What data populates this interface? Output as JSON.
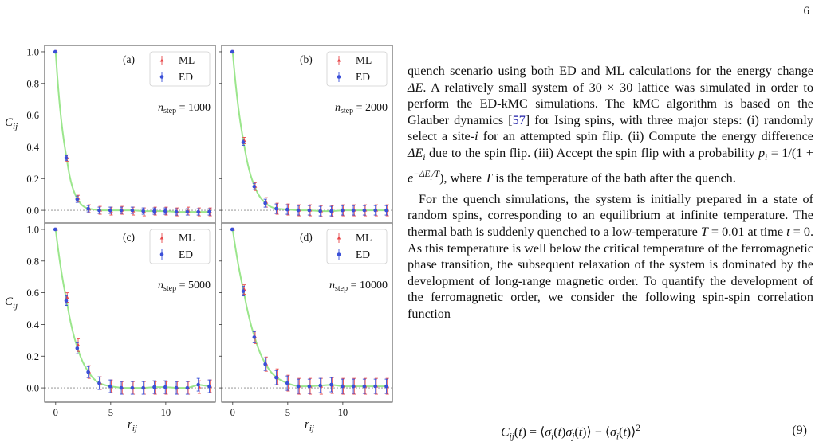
{
  "page_number": "6",
  "figure": {
    "panels": [
      {
        "label": "(a)",
        "annotation": "n",
        "annotation_sub": "step",
        "annotation_value": "= 1000"
      },
      {
        "label": "(b)",
        "annotation": "n",
        "annotation_sub": "step",
        "annotation_value": "= 2000"
      },
      {
        "label": "(c)",
        "annotation": "n",
        "annotation_sub": "step",
        "annotation_value": "= 5000"
      },
      {
        "label": "(d)",
        "annotation": "n",
        "annotation_sub": "step",
        "annotation_value": "= 10000"
      }
    ],
    "ylabel": "C",
    "ylabel_sub": "ij",
    "xlabel": "r",
    "xlabel_sub": "ij",
    "legend": [
      "ML",
      "ED"
    ],
    "colors": {
      "ml": "#e8494b",
      "ed": "#3a4fd8",
      "curve": "#9be68c",
      "zero_line": "#888888"
    }
  },
  "chart_data": [
    {
      "type": "scatter",
      "panel": "(a)",
      "xlim": [
        -1,
        14.5
      ],
      "ylim": [
        -0.09,
        1.04
      ],
      "xticks": [
        "0",
        "5",
        "10"
      ],
      "yticks": [
        "0.0",
        "0.2",
        "0.4",
        "0.6",
        "0.8",
        "1.0"
      ],
      "x": [
        0,
        1,
        2,
        3,
        4,
        5,
        6,
        7,
        8,
        9,
        10,
        11,
        12,
        13,
        14
      ],
      "series": [
        {
          "name": "ML",
          "values": [
            1.0,
            0.33,
            0.075,
            0.01,
            0.0,
            -0.005,
            0.0,
            -0.005,
            -0.01,
            -0.005,
            -0.005,
            -0.01,
            -0.005,
            -0.01,
            -0.01
          ],
          "errors": [
            0.0,
            0.02,
            0.02,
            0.025,
            0.025,
            0.025,
            0.025,
            0.025,
            0.025,
            0.025,
            0.025,
            0.025,
            0.025,
            0.025,
            0.025
          ]
        },
        {
          "name": "ED",
          "values": [
            1.0,
            0.33,
            0.07,
            0.01,
            0.0,
            0.0,
            0.0,
            0.0,
            -0.005,
            -0.005,
            -0.005,
            -0.01,
            -0.01,
            -0.01,
            -0.01
          ],
          "errors": [
            0.0,
            0.015,
            0.02,
            0.02,
            0.02,
            0.02,
            0.02,
            0.02,
            0.02,
            0.02,
            0.02,
            0.02,
            0.02,
            0.02,
            0.02
          ]
        }
      ]
    },
    {
      "type": "scatter",
      "panel": "(b)",
      "xlim": [
        -1,
        14.5
      ],
      "ylim": [
        -0.09,
        1.04
      ],
      "xticks": [
        "0",
        "5",
        "10"
      ],
      "yticks": [],
      "x": [
        0,
        1,
        2,
        3,
        4,
        5,
        6,
        7,
        8,
        9,
        10,
        11,
        12,
        13,
        14
      ],
      "series": [
        {
          "name": "ML",
          "values": [
            1.0,
            0.44,
            0.15,
            0.05,
            0.01,
            0.005,
            0.0,
            0.0,
            -0.005,
            -0.005,
            0.0,
            0.0,
            0.0,
            0.0,
            0.0
          ],
          "errors": [
            0.0,
            0.02,
            0.025,
            0.03,
            0.035,
            0.035,
            0.035,
            0.035,
            0.035,
            0.035,
            0.035,
            0.035,
            0.035,
            0.035,
            0.035
          ]
        },
        {
          "name": "ED",
          "values": [
            1.0,
            0.43,
            0.15,
            0.045,
            0.01,
            0.005,
            0.0,
            0.0,
            -0.005,
            -0.005,
            0.0,
            0.0,
            0.0,
            0.0,
            0.0
          ],
          "errors": [
            0.0,
            0.02,
            0.02,
            0.025,
            0.03,
            0.03,
            0.03,
            0.03,
            0.03,
            0.03,
            0.03,
            0.03,
            0.03,
            0.03,
            0.03
          ]
        }
      ]
    },
    {
      "type": "scatter",
      "panel": "(c)",
      "xlim": [
        -1,
        14.5
      ],
      "ylim": [
        -0.09,
        1.04
      ],
      "xticks": [
        "0",
        "5",
        "10"
      ],
      "yticks": [
        "0.0",
        "0.2",
        "0.4",
        "0.6",
        "0.8",
        "1.0"
      ],
      "x": [
        0,
        1,
        2,
        3,
        4,
        5,
        6,
        7,
        8,
        9,
        10,
        11,
        12,
        13,
        14
      ],
      "series": [
        {
          "name": "ML",
          "values": [
            1.0,
            0.57,
            0.27,
            0.1,
            0.03,
            0.01,
            0.0,
            0.0,
            0.0,
            0.0,
            0.0,
            0.0,
            0.0,
            0.005,
            0.01
          ],
          "errors": [
            0.0,
            0.03,
            0.04,
            0.04,
            0.04,
            0.04,
            0.04,
            0.04,
            0.04,
            0.04,
            0.04,
            0.04,
            0.04,
            0.04,
            0.04
          ]
        },
        {
          "name": "ED",
          "values": [
            1.0,
            0.55,
            0.25,
            0.1,
            0.03,
            0.01,
            0.0,
            0.0,
            0.0,
            0.005,
            0.005,
            0.0,
            0.0,
            0.02,
            0.01
          ],
          "errors": [
            0.0,
            0.03,
            0.035,
            0.035,
            0.04,
            0.04,
            0.04,
            0.04,
            0.04,
            0.04,
            0.04,
            0.04,
            0.04,
            0.04,
            0.04
          ]
        }
      ]
    },
    {
      "type": "scatter",
      "panel": "(d)",
      "xlim": [
        -1,
        14.5
      ],
      "ylim": [
        -0.09,
        1.04
      ],
      "xticks": [
        "0",
        "5",
        "10"
      ],
      "yticks": [],
      "x": [
        0,
        1,
        2,
        3,
        4,
        5,
        6,
        7,
        8,
        9,
        10,
        11,
        12,
        13,
        14
      ],
      "series": [
        {
          "name": "ML",
          "values": [
            1.0,
            0.62,
            0.32,
            0.15,
            0.07,
            0.03,
            0.01,
            0.01,
            0.01,
            0.015,
            0.01,
            0.01,
            0.01,
            0.01,
            0.01
          ],
          "errors": [
            0.0,
            0.03,
            0.04,
            0.045,
            0.05,
            0.05,
            0.05,
            0.05,
            0.05,
            0.05,
            0.05,
            0.05,
            0.05,
            0.05,
            0.05
          ]
        },
        {
          "name": "ED",
          "values": [
            1.0,
            0.61,
            0.32,
            0.15,
            0.065,
            0.03,
            0.01,
            0.01,
            0.015,
            0.02,
            0.01,
            0.01,
            0.01,
            0.01,
            0.01
          ],
          "errors": [
            0.0,
            0.03,
            0.035,
            0.04,
            0.045,
            0.045,
            0.045,
            0.045,
            0.045,
            0.045,
            0.045,
            0.045,
            0.045,
            0.045,
            0.045
          ]
        }
      ]
    }
  ],
  "text": {
    "p1_a": "quench scenario using both ED and ML calculations for the energy change ",
    "p1_dE": "ΔE",
    "p1_b": ". A relatively small system of 30 × 30 lattice was simulated in order to perform the ED-kMC simulations. The kMC algorithm is based on the Glauber dynamics [",
    "p1_ref": "57",
    "p1_c": "] for Ising spins, with three major steps: (i) randomly select a site-",
    "p1_i": "i",
    "p1_d": " for an attempted spin flip. (ii) Compute the energy difference ",
    "p1_dEi": "ΔE",
    "p1_dEi_sub": "i",
    "p1_e": " due to the spin flip. (iii) Accept the spin flip with a probability ",
    "p1_prob": "p",
    "p1_prob_sub": "i",
    "p1_prob_eq": " = 1/(1 + ",
    "p1_prob_e": "e",
    "p1_prob_sup": "−ΔE",
    "p1_prob_sup_sub": "i",
    "p1_prob_sup_end": "/T",
    "p1_prob_end": "), where ",
    "p1_T": "T",
    "p1_f": " is the temperature of the bath after the quench.",
    "p2_a": "For the quench simulations, the system is initially prepared in a state of random spins, corresponding to an equilibrium at infinite temperature. The thermal bath is suddenly quenched to a low-temperature ",
    "p2_T": "T",
    "p2_b": " = 0.01 at time ",
    "p2_t": "t",
    "p2_c": " = 0. As this temperature is well below the critical temperature of the ferromagnetic phase transition, the subsequent relaxation of the system is dominated by the development of long-range magnetic order. To quantify the development of the ferromagnetic order, we consider the following spin-spin correlation function",
    "equation": "C_ij(t) = ⟨σ_i(t)σ_j(t)⟩ − ⟨σ_i(t)⟩²",
    "eq_number": "(9)"
  }
}
